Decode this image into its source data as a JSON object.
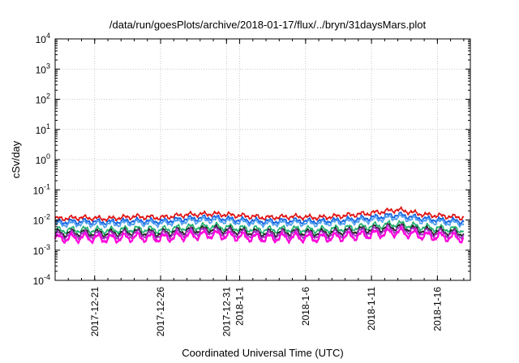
{
  "chart_data": {
    "type": "line",
    "title": "/data/run/goesPlots/archive/2018-01-17/flux/../bryn/31daysMars.plot",
    "xlabel": "Coordinated Universal Time (UTC)",
    "ylabel": "cSv/day",
    "yscale": "log",
    "ylim": [
      0.0001,
      10000
    ],
    "y_ticks": [
      {
        "value": 0.0001,
        "base": "10",
        "exp": "-4"
      },
      {
        "value": 0.001,
        "base": "10",
        "exp": "-3"
      },
      {
        "value": 0.01,
        "base": "10",
        "exp": "-2"
      },
      {
        "value": 0.1,
        "base": "10",
        "exp": "-1"
      },
      {
        "value": 1,
        "base": "10",
        "exp": "0"
      },
      {
        "value": 10,
        "base": "10",
        "exp": "1"
      },
      {
        "value": 100,
        "base": "10",
        "exp": "2"
      },
      {
        "value": 1000,
        "base": "10",
        "exp": "3"
      },
      {
        "value": 10000,
        "base": "10",
        "exp": "4"
      }
    ],
    "xlim": [
      "2017-12-18T00:00",
      "2018-01-18T12:00"
    ],
    "x_ticks": [
      {
        "date": "2017-12-21",
        "label": "2017-12-21"
      },
      {
        "date": "2017-12-26",
        "label": "2017-12-26"
      },
      {
        "date": "2017-12-31",
        "label": "2017-12-31"
      },
      {
        "date": "2018-01-01",
        "label": "2018-1-1"
      },
      {
        "date": "2018-01-06",
        "label": "2018-1-6"
      },
      {
        "date": "2018-01-11",
        "label": "2018-1-11"
      },
      {
        "date": "2018-01-16",
        "label": "2018-1-16"
      }
    ],
    "grid": true,
    "legend": "none",
    "series": [
      {
        "color": "#e01010",
        "points": [
          [
            "2017-12-18",
            0.011
          ],
          [
            "2017-12-20",
            0.012
          ],
          [
            "2017-12-22",
            0.011
          ],
          [
            "2017-12-24",
            0.013
          ],
          [
            "2017-12-26",
            0.012
          ],
          [
            "2017-12-28",
            0.015
          ],
          [
            "2017-12-30",
            0.016
          ],
          [
            "2018-01-01",
            0.014
          ],
          [
            "2018-01-03",
            0.012
          ],
          [
            "2018-01-05",
            0.013
          ],
          [
            "2018-01-07",
            0.012
          ],
          [
            "2018-01-09",
            0.014
          ],
          [
            "2018-01-11",
            0.017
          ],
          [
            "2018-01-13",
            0.022
          ],
          [
            "2018-01-15",
            0.015
          ],
          [
            "2018-01-17",
            0.013
          ],
          [
            "2018-01-18",
            0.012
          ]
        ]
      },
      {
        "color": "#1060e0",
        "points": [
          [
            "2017-12-18",
            0.0085
          ],
          [
            "2017-12-20",
            0.009
          ],
          [
            "2017-12-22",
            0.0085
          ],
          [
            "2017-12-24",
            0.0095
          ],
          [
            "2017-12-26",
            0.009
          ],
          [
            "2017-12-28",
            0.011
          ],
          [
            "2017-12-30",
            0.012
          ],
          [
            "2018-01-01",
            0.01
          ],
          [
            "2018-01-03",
            0.009
          ],
          [
            "2018-01-05",
            0.0095
          ],
          [
            "2018-01-07",
            0.009
          ],
          [
            "2018-01-09",
            0.01
          ],
          [
            "2018-01-11",
            0.012
          ],
          [
            "2018-01-13",
            0.015
          ],
          [
            "2018-01-15",
            0.011
          ],
          [
            "2018-01-17",
            0.0095
          ],
          [
            "2018-01-18",
            0.009
          ]
        ]
      },
      {
        "color": "#50a0f0",
        "points": [
          [
            "2017-12-18",
            0.0072
          ],
          [
            "2017-12-20",
            0.0076
          ],
          [
            "2017-12-22",
            0.0072
          ],
          [
            "2017-12-24",
            0.008
          ],
          [
            "2017-12-26",
            0.0076
          ],
          [
            "2017-12-28",
            0.0092
          ],
          [
            "2017-12-30",
            0.01
          ],
          [
            "2018-01-01",
            0.0085
          ],
          [
            "2018-01-03",
            0.0076
          ],
          [
            "2018-01-05",
            0.008
          ],
          [
            "2018-01-07",
            0.0076
          ],
          [
            "2018-01-09",
            0.0085
          ],
          [
            "2018-01-11",
            0.01
          ],
          [
            "2018-01-13",
            0.0125
          ],
          [
            "2018-01-15",
            0.0092
          ],
          [
            "2018-01-17",
            0.008
          ],
          [
            "2018-01-18",
            0.0076
          ]
        ]
      },
      {
        "color": "#20b070",
        "points": [
          [
            "2017-12-18",
            0.0045
          ],
          [
            "2017-12-20",
            0.0048
          ],
          [
            "2017-12-22",
            0.0045
          ],
          [
            "2017-12-24",
            0.005
          ],
          [
            "2017-12-26",
            0.0047
          ],
          [
            "2017-12-28",
            0.0057
          ],
          [
            "2017-12-30",
            0.0062
          ],
          [
            "2018-01-01",
            0.0053
          ],
          [
            "2018-01-03",
            0.0047
          ],
          [
            "2018-01-05",
            0.005
          ],
          [
            "2018-01-07",
            0.0047
          ],
          [
            "2018-01-09",
            0.0053
          ],
          [
            "2018-01-11",
            0.0062
          ],
          [
            "2018-01-13",
            0.0075
          ],
          [
            "2018-01-15",
            0.0057
          ],
          [
            "2018-01-17",
            0.005
          ],
          [
            "2018-01-18",
            0.0047
          ]
        ]
      },
      {
        "color": "#202020",
        "points": [
          [
            "2017-12-18",
            0.0036
          ],
          [
            "2017-12-20",
            0.0038
          ],
          [
            "2017-12-22",
            0.0036
          ],
          [
            "2017-12-24",
            0.004
          ],
          [
            "2017-12-26",
            0.0037
          ],
          [
            "2017-12-28",
            0.0045
          ],
          [
            "2017-12-30",
            0.005
          ],
          [
            "2018-01-01",
            0.0042
          ],
          [
            "2018-01-03",
            0.0037
          ],
          [
            "2018-01-05",
            0.004
          ],
          [
            "2018-01-07",
            0.0037
          ],
          [
            "2018-01-09",
            0.0042
          ],
          [
            "2018-01-11",
            0.005
          ],
          [
            "2018-01-13",
            0.006
          ],
          [
            "2018-01-15",
            0.0045
          ],
          [
            "2018-01-17",
            0.004
          ],
          [
            "2018-01-18",
            0.0037
          ]
        ]
      },
      {
        "color": "#a030c0",
        "points": [
          [
            "2017-12-18",
            0.0031
          ],
          [
            "2017-12-20",
            0.0033
          ],
          [
            "2017-12-22",
            0.0031
          ],
          [
            "2017-12-24",
            0.0035
          ],
          [
            "2017-12-26",
            0.0032
          ],
          [
            "2017-12-28",
            0.0039
          ],
          [
            "2017-12-30",
            0.0043
          ],
          [
            "2018-01-01",
            0.0036
          ],
          [
            "2018-01-03",
            0.0032
          ],
          [
            "2018-01-05",
            0.0035
          ],
          [
            "2018-01-07",
            0.0032
          ],
          [
            "2018-01-09",
            0.0036
          ],
          [
            "2018-01-11",
            0.0043
          ],
          [
            "2018-01-13",
            0.0052
          ],
          [
            "2018-01-15",
            0.0039
          ],
          [
            "2018-01-17",
            0.0035
          ],
          [
            "2018-01-18",
            0.0032
          ]
        ]
      },
      {
        "color": "#ff00dd",
        "points": [
          [
            "2017-12-18",
            0.0024
          ],
          [
            "2017-12-20",
            0.0026
          ],
          [
            "2017-12-22",
            0.0024
          ],
          [
            "2017-12-24",
            0.0027
          ],
          [
            "2017-12-26",
            0.0025
          ],
          [
            "2017-12-28",
            0.003
          ],
          [
            "2017-12-30",
            0.0033
          ],
          [
            "2018-01-01",
            0.0028
          ],
          [
            "2018-01-03",
            0.0025
          ],
          [
            "2018-01-05",
            0.0027
          ],
          [
            "2018-01-07",
            0.0025
          ],
          [
            "2018-01-09",
            0.0028
          ],
          [
            "2018-01-11",
            0.0033
          ],
          [
            "2018-01-13",
            0.004
          ],
          [
            "2018-01-15",
            0.003
          ],
          [
            "2018-01-17",
            0.0027
          ],
          [
            "2018-01-18",
            0.0025
          ]
        ]
      }
    ]
  }
}
